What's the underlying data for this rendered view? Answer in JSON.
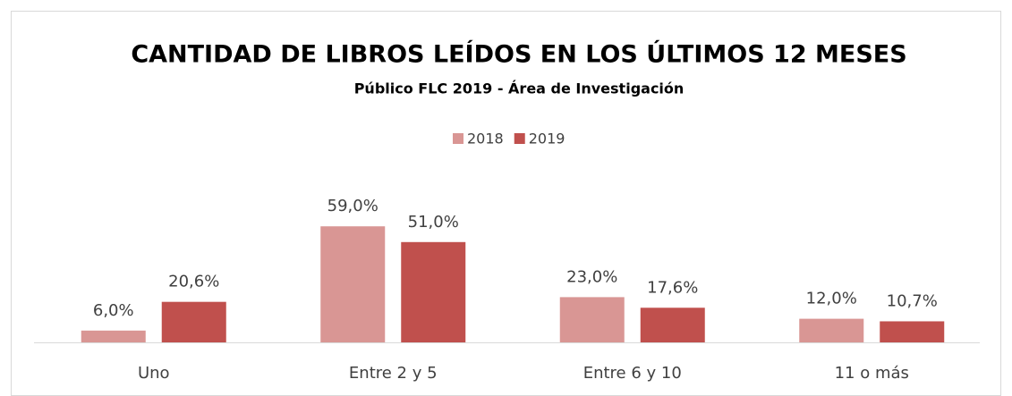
{
  "chart_data": {
    "type": "bar",
    "title": "CANTIDAD DE LIBROS LEÍDOS EN LOS ÚLTIMOS 12 MESES",
    "subtitle": "Público FLC 2019 - Área de Investigación",
    "categories": [
      "Uno",
      "Entre 2 y 5",
      "Entre 6 y 10",
      "11 o más"
    ],
    "series": [
      {
        "name": "2018",
        "color": "#d99694",
        "values": [
          6.0,
          59.0,
          23.0,
          12.0
        ],
        "value_labels": [
          "6,0%",
          "59,0%",
          "23,0%",
          "12,0%"
        ]
      },
      {
        "name": "2019",
        "color": "#c0504d",
        "values": [
          20.6,
          51.0,
          17.6,
          10.7
        ],
        "value_labels": [
          "20,6%",
          "51,0%",
          "17,6%",
          "10,7%"
        ]
      }
    ],
    "legend": "top"
  }
}
